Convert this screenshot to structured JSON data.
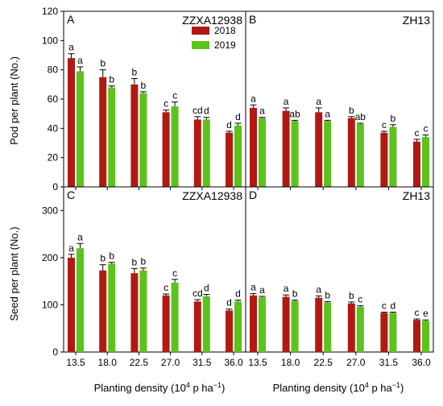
{
  "colors": {
    "2018": "#b11a12",
    "2019": "#5cc21c",
    "error": "#000000",
    "axis": "#000000"
  },
  "legend": {
    "items": [
      "2018",
      "2019"
    ],
    "placement": "top-right of panel A"
  },
  "shared": {
    "xlabel": "Planting density (10",
    "xlabel_sup": "4",
    "xlabel_rest": " p ha",
    "xlabel_sup2": "−1",
    "xlabel_end": ")",
    "ylabel_top": "Pod per plant (No.)",
    "ylabel_bottom": "Seed per plant (No.)",
    "categories": [
      "13.5",
      "18.0",
      "22.5",
      "27.0",
      "31.5",
      "36.0"
    ]
  },
  "chart_data": [
    {
      "type": "bar",
      "panel": "A",
      "title": "ZZXA12938",
      "ylabel": "Pod per plant (No.)",
      "ylim": [
        0,
        120
      ],
      "yticks": [
        0,
        20,
        40,
        60,
        80,
        100,
        120
      ],
      "categories": [
        "13.5",
        "18.0",
        "22.5",
        "27.0",
        "31.5",
        "36.0"
      ],
      "series": [
        {
          "name": "2018",
          "values": [
            88,
            75,
            70,
            51,
            46,
            37
          ],
          "errors": [
            3,
            5,
            4,
            1.5,
            2,
            1
          ],
          "letters": [
            "a",
            "b",
            "b",
            "c",
            "cd",
            "d"
          ]
        },
        {
          "name": "2019",
          "values": [
            79,
            68,
            64,
            55,
            46,
            42
          ],
          "errors": [
            3,
            1,
            1,
            3,
            1.5,
            1.5
          ],
          "letters": [
            "a",
            "b",
            "b",
            "c",
            "d",
            "d"
          ]
        }
      ]
    },
    {
      "type": "bar",
      "panel": "B",
      "title": "ZH13",
      "ylim": [
        0,
        120
      ],
      "categories": [
        "13.5",
        "18.0",
        "22.5",
        "27.0",
        "31.5",
        "36.0"
      ],
      "series": [
        {
          "name": "2018",
          "values": [
            54,
            52,
            51,
            47,
            37,
            31
          ],
          "errors": [
            2,
            2,
            3,
            1,
            1,
            1.5
          ],
          "letters": [
            "a",
            "a",
            "a",
            "b",
            "c",
            "c"
          ]
        },
        {
          "name": "2019",
          "values": [
            47,
            45,
            45,
            43,
            41,
            34
          ],
          "errors": [
            0.5,
            0.5,
            0.5,
            0.5,
            1.5,
            1.5
          ],
          "letters": [
            "a",
            "ab",
            "a",
            "ab",
            "b",
            "c"
          ]
        }
      ]
    },
    {
      "type": "bar",
      "panel": "C",
      "title": "ZZXA12938",
      "ylabel": "Seed per plant (No.)",
      "ylim": [
        0,
        350
      ],
      "yticks": [
        0,
        100,
        200,
        300
      ],
      "categories": [
        "13.5",
        "18.0",
        "22.5",
        "27.0",
        "31.5",
        "36.0"
      ],
      "series": [
        {
          "name": "2018",
          "values": [
            200,
            173,
            167,
            120,
            107,
            88
          ],
          "errors": [
            7,
            12,
            10,
            3,
            4,
            3
          ],
          "letters": [
            "a",
            "b",
            "b",
            "c",
            "cd",
            "d"
          ]
        },
        {
          "name": "2019",
          "values": [
            220,
            187,
            173,
            147,
            118,
            107
          ],
          "errors": [
            10,
            3,
            5,
            7,
            4,
            3
          ],
          "letters": [
            "a",
            "b",
            "b",
            "c",
            "d",
            "d"
          ]
        }
      ]
    },
    {
      "type": "bar",
      "panel": "D",
      "title": "ZH13",
      "ylim": [
        0,
        350
      ],
      "categories": [
        "13.5",
        "18.0",
        "22.5",
        "27.0",
        "31.5",
        "36.0"
      ],
      "series": [
        {
          "name": "2018",
          "values": [
            120,
            117,
            115,
            103,
            83,
            68
          ],
          "errors": [
            4,
            4,
            4,
            3,
            1.5,
            2
          ],
          "letters": [
            "a",
            "a",
            "a",
            "b",
            "c",
            "c"
          ]
        },
        {
          "name": "2019",
          "values": [
            116,
            108,
            105,
            96,
            83,
            66
          ],
          "errors": [
            2,
            2,
            2,
            2,
            1.5,
            2
          ],
          "letters": [
            "a",
            "b",
            "b",
            "c",
            "d",
            "e"
          ]
        }
      ]
    }
  ]
}
